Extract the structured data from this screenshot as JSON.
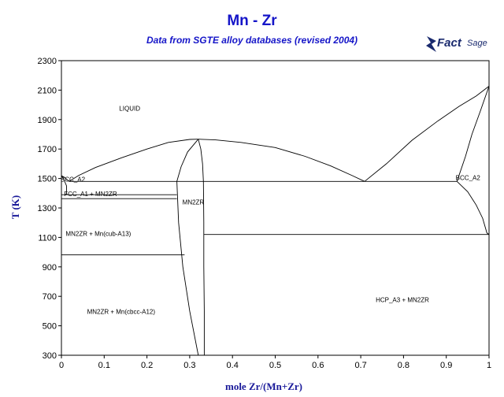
{
  "chart_data": {
    "type": "phase-diagram",
    "title": "Mn - Zr",
    "subtitle": "Data from SGTE alloy databases (revised 2004)",
    "xlabel": "mole Zr/(Mn+Zr)",
    "ylabel": "T (K)",
    "xlim": [
      0,
      1
    ],
    "ylim": [
      300,
      2300
    ],
    "x_ticks": [
      0,
      0.1,
      0.2,
      0.3,
      0.4,
      0.5,
      0.6,
      0.7,
      0.8,
      0.9,
      1
    ],
    "x_tick_labels": [
      "0",
      "0.1",
      "0.2",
      "0.3",
      "0.4",
      "0.5",
      "0.6",
      "0.7",
      "0.8",
      "0.9",
      "1"
    ],
    "y_ticks": [
      300,
      500,
      700,
      900,
      1100,
      1300,
      1500,
      1700,
      1900,
      2100,
      2300
    ],
    "y_tick_labels": [
      "300",
      "500",
      "700",
      "900",
      "1100",
      "1300",
      "1500",
      "1700",
      "1900",
      "2100",
      "2300"
    ],
    "curves": [
      {
        "points": [
          [
            0.0,
            1519
          ],
          [
            0.006,
            1510
          ],
          [
            0.012,
            1495
          ],
          [
            0.018,
            1480
          ]
        ]
      },
      {
        "points": [
          [
            0.0,
            1519
          ],
          [
            0.006,
            1490
          ],
          [
            0.012,
            1450
          ],
          [
            0.012,
            1390
          ]
        ]
      },
      {
        "points": [
          [
            0.018,
            1480
          ],
          [
            0.04,
            1520
          ],
          [
            0.08,
            1575
          ],
          [
            0.14,
            1640
          ],
          [
            0.2,
            1700
          ],
          [
            0.25,
            1745
          ],
          [
            0.3,
            1765
          ],
          [
            0.32,
            1767
          ]
        ]
      },
      {
        "points": [
          [
            0.32,
            1767
          ],
          [
            0.36,
            1762
          ],
          [
            0.42,
            1745
          ],
          [
            0.5,
            1710
          ],
          [
            0.57,
            1650
          ],
          [
            0.63,
            1585
          ],
          [
            0.68,
            1520
          ],
          [
            0.709,
            1480
          ]
        ]
      },
      {
        "points": [
          [
            0.709,
            1480
          ],
          [
            0.76,
            1600
          ],
          [
            0.82,
            1760
          ],
          [
            0.88,
            1890
          ],
          [
            0.93,
            1990
          ],
          [
            0.97,
            2060
          ],
          [
            1.0,
            2127
          ]
        ]
      },
      {
        "points": [
          [
            0.925,
            1480
          ],
          [
            0.945,
            1650
          ],
          [
            0.96,
            1800
          ],
          [
            0.98,
            1960
          ],
          [
            1.0,
            2127
          ]
        ]
      },
      {
        "points": [
          [
            0.925,
            1480
          ],
          [
            0.95,
            1410
          ],
          [
            0.97,
            1320
          ],
          [
            0.985,
            1230
          ],
          [
            0.995,
            1130
          ],
          [
            1.0,
            1120
          ]
        ]
      },
      {
        "points": [
          [
            0.27,
            1480
          ],
          [
            0.28,
            1580
          ],
          [
            0.295,
            1680
          ],
          [
            0.32,
            1767
          ]
        ]
      },
      {
        "points": [
          [
            0.32,
            1767
          ],
          [
            0.326,
            1700
          ],
          [
            0.33,
            1600
          ],
          [
            0.332,
            1480
          ]
        ]
      },
      {
        "points": [
          [
            0.27,
            1480
          ],
          [
            0.274,
            1200
          ],
          [
            0.284,
            900
          ],
          [
            0.3,
            600
          ],
          [
            0.32,
            300
          ]
        ]
      },
      {
        "points": [
          [
            0.332,
            1480
          ],
          [
            0.333,
            1200
          ],
          [
            0.333,
            900
          ],
          [
            0.334,
            600
          ],
          [
            0.334,
            300
          ]
        ]
      }
    ],
    "horizontal_lines": [
      {
        "y": 1480,
        "x": [
          0.018,
          0.925
        ]
      },
      {
        "y": 1390,
        "x": [
          0.0,
          0.27
        ]
      },
      {
        "y": 1363,
        "x": [
          0.0,
          0.27
        ]
      },
      {
        "y": 1120,
        "x": [
          0.333,
          1.0
        ]
      },
      {
        "y": 982,
        "x": [
          0.0,
          0.288
        ]
      }
    ],
    "region_labels": [
      {
        "text": "LIQUID",
        "x": 0.135,
        "y": 1960
      },
      {
        "text": "BCC_A2",
        "x": -0.002,
        "y": 1478
      },
      {
        "text": "FCC_A1 + MN2ZR",
        "x": 0.006,
        "y": 1380
      },
      {
        "text": "MN2ZR",
        "x": 0.283,
        "y": 1323
      },
      {
        "text": "MN2ZR + Mn(cub-A13)",
        "x": 0.01,
        "y": 1110
      },
      {
        "text": "MN2ZR + Mn(cbcc-A12)",
        "x": 0.06,
        "y": 580
      },
      {
        "text": "HCP_A3 + MN2ZR",
        "x": 0.735,
        "y": 660
      },
      {
        "text": "BCC_A2",
        "x": 0.922,
        "y": 1490
      }
    ]
  },
  "logo": {
    "text": "Fact",
    "text2": "Sage",
    "mark": "™"
  }
}
